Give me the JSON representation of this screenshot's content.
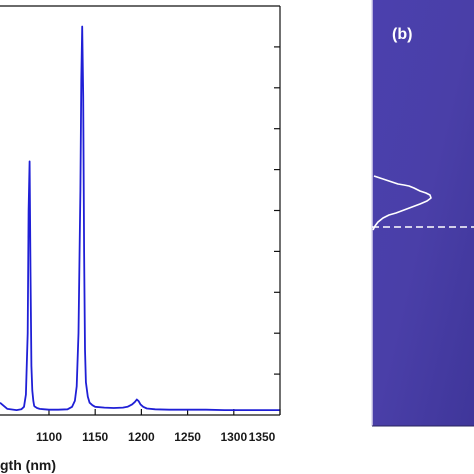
{
  "chart_data": [
    {
      "type": "line",
      "panel": "a",
      "xlabel": "gth (nm)",
      "x_ticks": [
        1100,
        1150,
        1200,
        1250,
        1300,
        1350
      ],
      "xlim": [
        1047,
        1350
      ],
      "ylim": [
        0,
        1
      ],
      "y_tick_count": 10,
      "grid": false,
      "series_color": "#1f1fd6",
      "series": [
        {
          "x": [
            1047,
            1055,
            1065,
            1070,
            1073,
            1075,
            1077,
            1078,
            1079,
            1080,
            1081,
            1082,
            1083,
            1084,
            1085,
            1087,
            1090,
            1095,
            1100,
            1110,
            1120,
            1125,
            1128,
            1130,
            1132,
            1134,
            1135,
            1136,
            1137,
            1138,
            1139,
            1140,
            1142,
            1144,
            1147,
            1150,
            1160,
            1170,
            1180,
            1185,
            1190,
            1193,
            1195,
            1197,
            1199,
            1202,
            1206,
            1215,
            1230,
            1250,
            1270,
            1290,
            1310,
            1330,
            1350
          ],
          "y": [
            0.03,
            0.015,
            0.012,
            0.014,
            0.02,
            0.05,
            0.2,
            0.5,
            0.62,
            0.35,
            0.12,
            0.06,
            0.035,
            0.022,
            0.02,
            0.017,
            0.015,
            0.014,
            0.013,
            0.013,
            0.014,
            0.02,
            0.035,
            0.07,
            0.2,
            0.55,
            0.82,
            0.95,
            0.78,
            0.4,
            0.16,
            0.08,
            0.045,
            0.03,
            0.024,
            0.02,
            0.018,
            0.017,
            0.018,
            0.02,
            0.026,
            0.032,
            0.038,
            0.034,
            0.026,
            0.02,
            0.016,
            0.014,
            0.013,
            0.013,
            0.013,
            0.012,
            0.012,
            0.012,
            0.012
          ]
        }
      ]
    },
    {
      "type": "image",
      "panel": "b",
      "label": "(b)",
      "background_color": "#4a3fa8",
      "profile_color": "#ffffff"
    }
  ]
}
